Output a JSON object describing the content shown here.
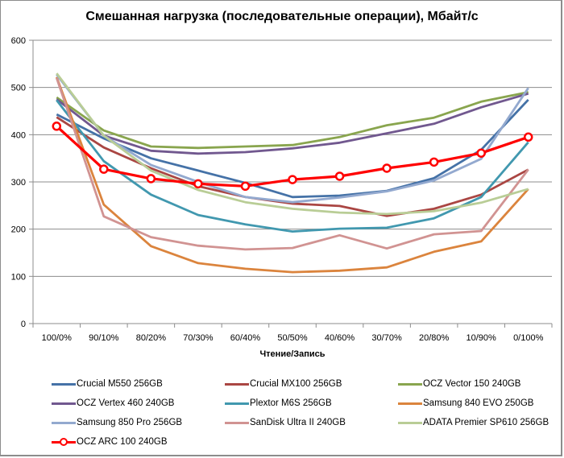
{
  "chart_data": {
    "type": "line",
    "title": "Смешанная нагрузка (последовательные операции), Мбайт/с",
    "xlabel": "Чтение/Запись",
    "ylabel": "",
    "ylim": [
      0,
      600
    ],
    "yticks": [
      "0",
      "100",
      "200",
      "300",
      "400",
      "500",
      "600"
    ],
    "grid": true,
    "legend_position": "bottom",
    "categories": [
      "100/0%",
      "90/10%",
      "80/20%",
      "70/30%",
      "60/40%",
      "50/50%",
      "40/60%",
      "30/70%",
      "20/80%",
      "10/90%",
      "0/100%"
    ],
    "series": [
      {
        "name": "Crucial M550 256GB",
        "color": "#4572A7",
        "marker": false,
        "values": [
          443,
          392,
          350,
          324,
          298,
          268,
          271,
          281,
          308,
          368,
          474
        ]
      },
      {
        "name": "Crucial MX100 256GB",
        "color": "#AA4643",
        "marker": false,
        "values": [
          437,
          373,
          329,
          291,
          268,
          254,
          249,
          228,
          243,
          273,
          326
        ]
      },
      {
        "name": "OCZ Vector 150 240GB",
        "color": "#89A54E",
        "marker": false,
        "values": [
          479,
          409,
          375,
          372,
          375,
          378,
          395,
          420,
          436,
          470,
          490
        ]
      },
      {
        "name": "OCZ Vertex 460 240GB",
        "color": "#71588F",
        "marker": false,
        "values": [
          475,
          398,
          366,
          360,
          363,
          371,
          383,
          403,
          423,
          458,
          487
        ]
      },
      {
        "name": "Plextor M6S 256GB",
        "color": "#4198AF",
        "marker": false,
        "values": [
          473,
          344,
          273,
          230,
          210,
          195,
          201,
          203,
          223,
          268,
          384
        ]
      },
      {
        "name": "Samsung 840 EVO 250GB",
        "color": "#DB843D",
        "marker": false,
        "values": [
          522,
          252,
          164,
          128,
          116,
          109,
          112,
          119,
          152,
          174,
          285
        ]
      },
      {
        "name": "Samsung 850 Pro 256GB",
        "color": "#93A9CF",
        "marker": false,
        "values": [
          527,
          398,
          336,
          300,
          268,
          257,
          267,
          280,
          303,
          349,
          499
        ]
      },
      {
        "name": "SanDisk Ultra II 240GB",
        "color": "#D19392",
        "marker": false,
        "values": [
          520,
          227,
          183,
          165,
          157,
          160,
          187,
          159,
          189,
          196,
          326
        ]
      },
      {
        "name": "ADATA Premier SP610 256GB",
        "color": "#B9CD96",
        "marker": false,
        "values": [
          530,
          398,
          324,
          283,
          257,
          243,
          235,
          232,
          238,
          256,
          285
        ]
      },
      {
        "name": "OCZ ARC 100 240GB",
        "color": "#FF0000",
        "marker": true,
        "values": [
          418,
          327,
          307,
          296,
          291,
          305,
          312,
          329,
          342,
          361,
          395
        ]
      }
    ]
  }
}
